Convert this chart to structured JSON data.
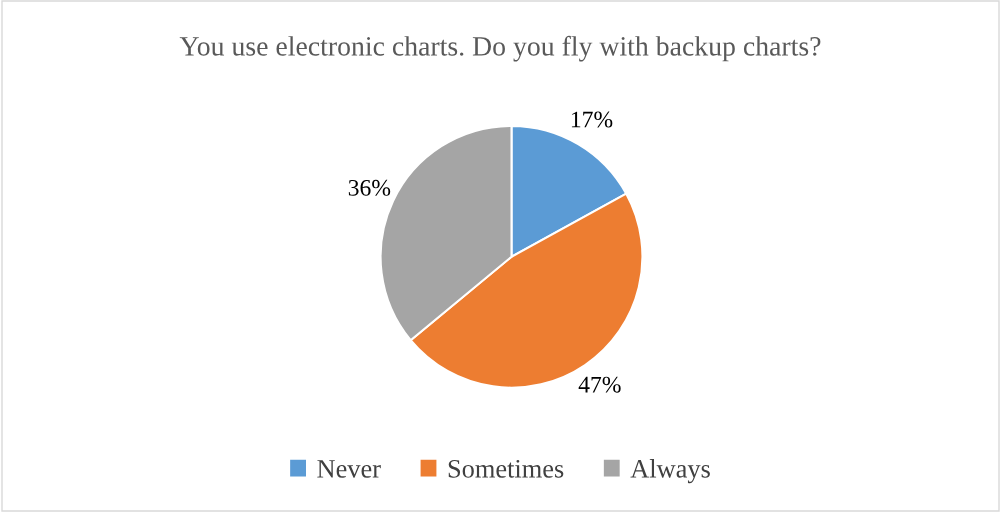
{
  "chart_data": {
    "type": "pie",
    "title": "You use electronic charts. Do you fly with backup charts?",
    "categories": [
      "Never",
      "Sometimes",
      "Always"
    ],
    "values": [
      17,
      47,
      36
    ],
    "value_labels": [
      "17%",
      "47%",
      "36%"
    ],
    "colors": [
      "#5b9bd5",
      "#ed7d31",
      "#a5a5a5"
    ],
    "legend": "bottom"
  }
}
